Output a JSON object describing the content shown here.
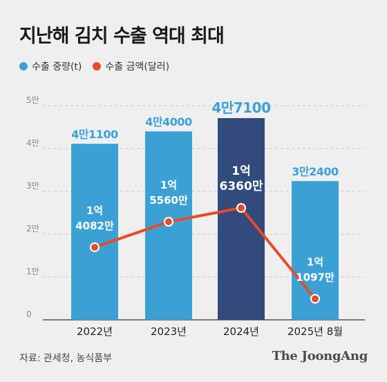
{
  "title": "지난해 김치 수출 역대 최대",
  "legend": {
    "volume_label": "수출 중량(t)",
    "value_label": "수출 금액(달러)"
  },
  "colors": {
    "bar": "#3ba1d4",
    "bar_highlight": "#324a7c",
    "line": "#e84b25",
    "background": "#efefef"
  },
  "source": "자료: 관세청, 농식품부",
  "brand": "The JoongAng",
  "chart_data": {
    "type": "bar",
    "title": "지난해 김치 수출 역대 최대",
    "categories": [
      "2022년",
      "2023년",
      "2024년",
      "2025년 8월"
    ],
    "y_ticks": [
      "0",
      "1만",
      "2만",
      "3만",
      "4만",
      "5만"
    ],
    "ylim": [
      0,
      50000
    ],
    "grid": true,
    "legend_position": "top-left",
    "series": [
      {
        "name": "수출 중량(t)",
        "type": "bar",
        "values": [
          41100,
          44000,
          47100,
          32400
        ],
        "labels": [
          "4만1100",
          "4만4000",
          "4만7100",
          "3만2400"
        ],
        "highlight_index": 2
      },
      {
        "name": "수출 금액(달러)",
        "type": "line",
        "values": [
          140820000,
          155600000,
          163600000,
          110970000
        ],
        "labels": [
          [
            "1억",
            "4082만"
          ],
          [
            "1억",
            "5560만"
          ],
          [
            "1억",
            "6360만"
          ],
          [
            "1억",
            "1097만"
          ]
        ]
      }
    ]
  }
}
